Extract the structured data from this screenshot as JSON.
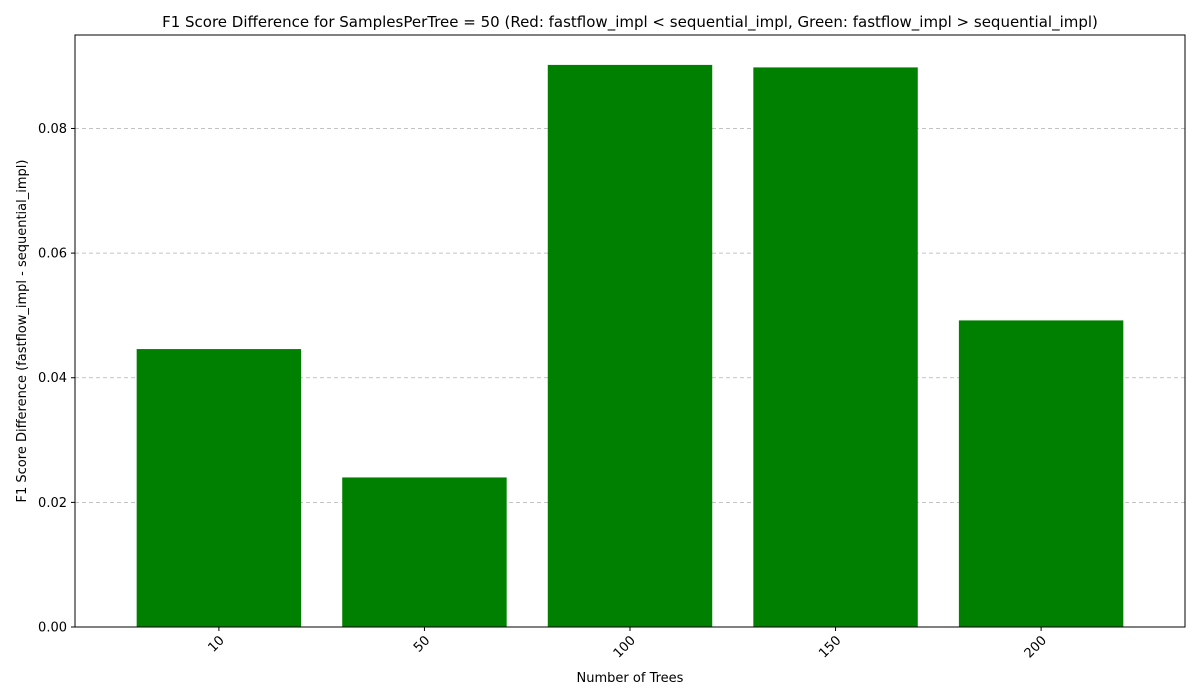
{
  "chart_data": {
    "type": "bar",
    "title": "F1 Score Difference for SamplesPerTree = 50 (Red: fastflow_impl < sequential_impl, Green: fastflow_impl > sequential_impl)",
    "xlabel": "Number of Trees",
    "ylabel": "F1 Score Difference (fastflow_impl - sequential_impl)",
    "categories": [
      "10",
      "50",
      "100",
      "150",
      "200"
    ],
    "values": [
      0.0446,
      0.024,
      0.0902,
      0.0898,
      0.0492
    ],
    "ylim": [
      0,
      0.095
    ],
    "yticks": [
      0.0,
      0.02,
      0.04,
      0.06,
      0.08
    ],
    "ytick_labels": [
      "0.00",
      "0.02",
      "0.04",
      "0.06",
      "0.08"
    ],
    "grid": "y-dashed",
    "colors": {
      "positive": "#008000",
      "negative": "#ff0000"
    },
    "xtick_rotation": -45
  }
}
